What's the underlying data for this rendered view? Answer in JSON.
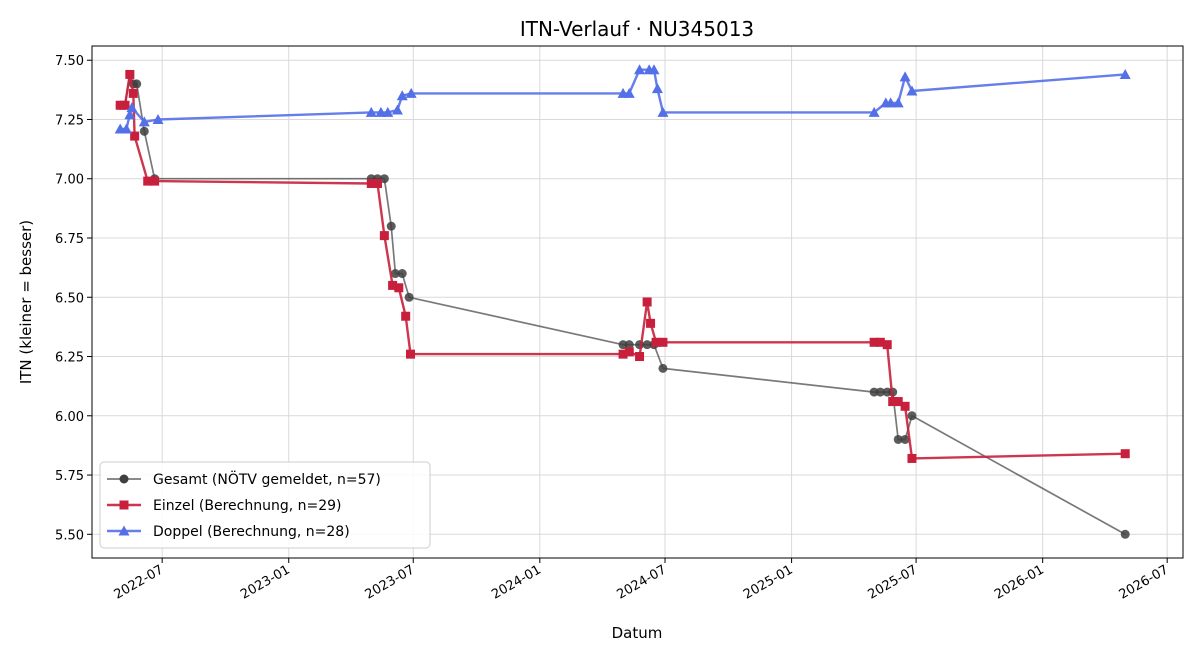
{
  "chart_data": {
    "type": "line",
    "title": "ITN-Verlauf · NU345013",
    "xlabel": "Datum",
    "ylabel": "ITN  (kleiner = besser)",
    "xlim": [
      "2022-03-21",
      "2026-07-24"
    ],
    "ylim": [
      5.4,
      7.56
    ],
    "x_ticks": [
      "2022-07-01",
      "2023-01-01",
      "2023-07-01",
      "2024-01-01",
      "2024-07-01",
      "2025-01-01",
      "2025-07-01",
      "2026-01-01",
      "2026-07-01"
    ],
    "x_tick_labels": [
      "2022-07",
      "2023-01",
      "2023-07",
      "2024-01",
      "2024-07",
      "2025-01",
      "2025-07",
      "2026-01",
      "2026-07"
    ],
    "y_ticks": [
      5.5,
      5.75,
      6.0,
      6.25,
      6.5,
      6.75,
      7.0,
      7.25,
      7.5
    ],
    "y_tick_labels": [
      "5.50",
      "5.75",
      "6.00",
      "6.25",
      "6.50",
      "6.75",
      "7.00",
      "7.25",
      "7.50"
    ],
    "grid": true,
    "legend_position": "lower-left",
    "series": [
      {
        "name": "Gesamt (NÖTV gemeldet, n=57)",
        "color": "#404040",
        "marker": "circle",
        "points": [
          [
            "2022-05-01",
            7.31
          ],
          [
            "2022-05-08",
            7.31
          ],
          [
            "2022-05-15",
            7.44
          ],
          [
            "2022-05-20",
            7.4
          ],
          [
            "2022-05-25",
            7.4
          ],
          [
            "2022-06-05",
            7.2
          ],
          [
            "2022-06-20",
            7.0
          ],
          [
            "2023-05-01",
            7.0
          ],
          [
            "2023-05-10",
            7.0
          ],
          [
            "2023-05-20",
            7.0
          ],
          [
            "2023-05-30",
            6.8
          ],
          [
            "2023-06-05",
            6.6
          ],
          [
            "2023-06-15",
            6.6
          ],
          [
            "2023-06-25",
            6.5
          ],
          [
            "2024-05-01",
            6.3
          ],
          [
            "2024-05-10",
            6.3
          ],
          [
            "2024-05-25",
            6.3
          ],
          [
            "2024-06-05",
            6.3
          ],
          [
            "2024-06-15",
            6.3
          ],
          [
            "2024-06-28",
            6.2
          ],
          [
            "2025-05-01",
            6.1
          ],
          [
            "2025-05-10",
            6.1
          ],
          [
            "2025-05-20",
            6.1
          ],
          [
            "2025-05-28",
            6.1
          ],
          [
            "2025-06-05",
            5.9
          ],
          [
            "2025-06-15",
            5.9
          ],
          [
            "2025-06-25",
            6.0
          ],
          [
            "2026-05-01",
            5.5
          ]
        ]
      },
      {
        "name": "Einzel (Berechnung, n=29)",
        "color": "#c8203c",
        "marker": "square",
        "points": [
          [
            "2022-05-01",
            7.31
          ],
          [
            "2022-05-08",
            7.31
          ],
          [
            "2022-05-15",
            7.44
          ],
          [
            "2022-05-20",
            7.36
          ],
          [
            "2022-05-22",
            7.18
          ],
          [
            "2022-06-10",
            6.99
          ],
          [
            "2022-06-20",
            6.99
          ],
          [
            "2023-05-01",
            6.98
          ],
          [
            "2023-05-10",
            6.98
          ],
          [
            "2023-05-20",
            6.76
          ],
          [
            "2023-06-01",
            6.55
          ],
          [
            "2023-06-10",
            6.54
          ],
          [
            "2023-06-20",
            6.42
          ],
          [
            "2023-06-27",
            6.26
          ],
          [
            "2024-05-01",
            6.26
          ],
          [
            "2024-05-10",
            6.27
          ],
          [
            "2024-05-25",
            6.25
          ],
          [
            "2024-06-05",
            6.48
          ],
          [
            "2024-06-10",
            6.39
          ],
          [
            "2024-06-18",
            6.31
          ],
          [
            "2024-06-28",
            6.31
          ],
          [
            "2025-05-01",
            6.31
          ],
          [
            "2025-05-10",
            6.31
          ],
          [
            "2025-05-20",
            6.3
          ],
          [
            "2025-05-28",
            6.06
          ],
          [
            "2025-06-05",
            6.06
          ],
          [
            "2025-06-15",
            6.04
          ],
          [
            "2025-06-25",
            5.82
          ],
          [
            "2026-05-01",
            5.84
          ]
        ]
      },
      {
        "name": "Doppel (Berechnung, n=28)",
        "color": "#5470e8",
        "marker": "triangle",
        "points": [
          [
            "2022-05-01",
            7.21
          ],
          [
            "2022-05-10",
            7.21
          ],
          [
            "2022-05-15",
            7.27
          ],
          [
            "2022-05-18",
            7.3
          ],
          [
            "2022-06-05",
            7.24
          ],
          [
            "2022-06-25",
            7.25
          ],
          [
            "2023-05-01",
            7.28
          ],
          [
            "2023-05-15",
            7.28
          ],
          [
            "2023-05-25",
            7.28
          ],
          [
            "2023-06-08",
            7.29
          ],
          [
            "2023-06-15",
            7.35
          ],
          [
            "2023-06-28",
            7.36
          ],
          [
            "2024-05-01",
            7.36
          ],
          [
            "2024-05-10",
            7.36
          ],
          [
            "2024-05-25",
            7.46
          ],
          [
            "2024-06-08",
            7.46
          ],
          [
            "2024-06-15",
            7.46
          ],
          [
            "2024-06-20",
            7.38
          ],
          [
            "2024-06-28",
            7.28
          ],
          [
            "2025-05-01",
            7.28
          ],
          [
            "2025-05-18",
            7.32
          ],
          [
            "2025-05-25",
            7.32
          ],
          [
            "2025-06-05",
            7.32
          ],
          [
            "2025-06-15",
            7.43
          ],
          [
            "2025-06-25",
            7.37
          ],
          [
            "2026-05-01",
            7.44
          ]
        ]
      }
    ]
  }
}
